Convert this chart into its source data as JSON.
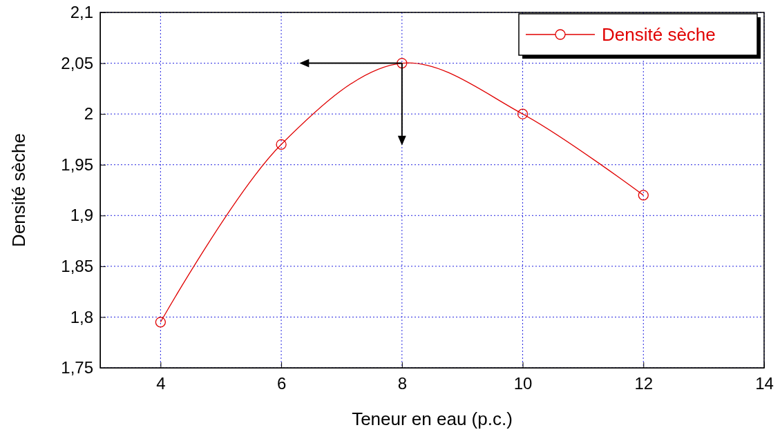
{
  "chart_data": {
    "type": "line",
    "xlabel": "Teneur en eau (p.c.)",
    "ylabel": "Densité sèche",
    "x": [
      4,
      6,
      8,
      10,
      12
    ],
    "series": [
      {
        "name": "Densité sèche",
        "color": "#e00000",
        "values": [
          1.795,
          1.97,
          2.05,
          2.0,
          1.92
        ]
      }
    ],
    "xlim": [
      3,
      14
    ],
    "xticks": [
      4,
      6,
      8,
      10,
      12,
      14
    ],
    "ylim": [
      1.75,
      2.1
    ],
    "yticks": [
      {
        "value": 1.75,
        "label": "1,75"
      },
      {
        "value": 1.8,
        "label": "1,8"
      },
      {
        "value": 1.85,
        "label": "1,85"
      },
      {
        "value": 1.9,
        "label": "1,9"
      },
      {
        "value": 1.95,
        "label": "1,95"
      },
      {
        "value": 2,
        "label": "2"
      },
      {
        "value": 2.05,
        "label": "2,05"
      },
      {
        "value": 2.1,
        "label": "2,1"
      }
    ],
    "grid": true,
    "legend": "top right",
    "marker": "circle",
    "line_style": "solid"
  }
}
